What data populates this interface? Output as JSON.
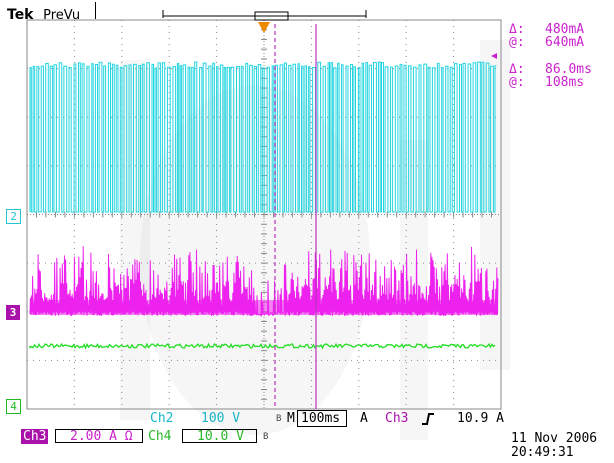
{
  "header": {
    "brand": "Tek",
    "mode": "PreVu"
  },
  "cursor_readout": {
    "amp_delta_symbol": "Δ:",
    "amp_delta": "480mA",
    "amp_at_symbol": "@:",
    "amp_at": "640mA",
    "time_delta_symbol": "Δ:",
    "time_delta": "86.0ms",
    "time_at_symbol": "@:",
    "time_at": "108ms"
  },
  "channel_markers": {
    "ch2": "2",
    "ch3": "3",
    "ch4": "4"
  },
  "status_bar": {
    "ch2_label": "Ch2",
    "ch2_scale": "100 V",
    "timebase_prefix": "M",
    "timebase": "100ms",
    "acq_mode": "A",
    "trigger_source": "Ch3",
    "trigger_level": "10.9 A",
    "ch3_label": "Ch3",
    "ch3_scale": "2.00 A Ω",
    "ch4_label": "Ch4",
    "ch4_scale": "10.0 V",
    "bw_symbol": "B",
    "date": "11 Nov 2006",
    "time": "20:49:31"
  },
  "colors": {
    "ch2": "#22d5e0",
    "ch3": "#ee22ee",
    "ch4": "#22dd22",
    "cursor": "#bb33bb",
    "grid": "#8a8a8a",
    "trigger_marker": "#ee8800"
  }
}
